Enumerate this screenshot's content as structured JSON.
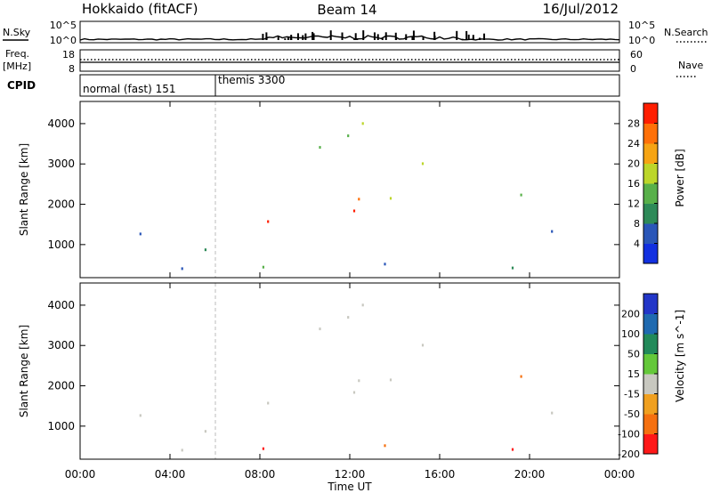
{
  "header": {
    "title": "Hokkaido (fitACF)",
    "beam": "Beam 14",
    "date": "16/Jul/2012"
  },
  "strips": {
    "nsky_label": "N.Sky",
    "nsearch_label": "N.Search",
    "nsky_ticks": [
      "10^5",
      "10^0"
    ],
    "nsearch_ticks": [
      "10^5",
      "10^0"
    ],
    "freq_label": "Freq.",
    "freq_unit": "[MHz]",
    "freq_ticks": [
      "18",
      "8"
    ],
    "nave_label": "Nave",
    "nave_ticks": [
      "60",
      "0"
    ],
    "cpid_label": "CPID",
    "cpid_segments": [
      {
        "label": "normal (fast) 151",
        "start": 0,
        "end": 6.1
      },
      {
        "label": "themis 3300",
        "start": 6.1,
        "end": 24
      }
    ]
  },
  "chart_data": [
    {
      "type": "heatmap",
      "name": "power",
      "xlabel": "",
      "ylabel": "Slant Range [km]",
      "xlim": [
        0,
        24
      ],
      "ylim": [
        180,
        4550
      ],
      "yticks": [
        1000,
        2000,
        3000,
        4000
      ],
      "colorbar": {
        "label": "Power [dB]",
        "ticks": [
          4,
          8,
          12,
          16,
          20,
          24,
          28
        ],
        "colors": [
          "#1230e0",
          "#2a56b8",
          "#2e8a58",
          "#58b04a",
          "#bcd62a",
          "#f6a414",
          "#ff7008",
          "#ff1e00"
        ]
      }
    },
    {
      "type": "heatmap",
      "name": "velocity",
      "xlabel": "Time UT",
      "ylabel": "Slant Range [km]",
      "xlim": [
        0,
        24
      ],
      "ylim": [
        180,
        4550
      ],
      "yticks": [
        1000,
        2000,
        3000,
        4000
      ],
      "xticks": [
        "00:00",
        "04:00",
        "08:00",
        "12:00",
        "16:00",
        "20:00",
        "00:00"
      ],
      "colorbar": {
        "label": "Velocity [m s^-1]",
        "ticks": [
          200,
          100,
          50,
          15,
          -15,
          -50,
          -100,
          -200
        ],
        "colors": [
          "#2236c8",
          "#1f6ab0",
          "#228a5a",
          "#64c83a",
          "#c8c8c0",
          "#f0a020",
          "#f57010",
          "#ff1818"
        ]
      }
    }
  ]
}
